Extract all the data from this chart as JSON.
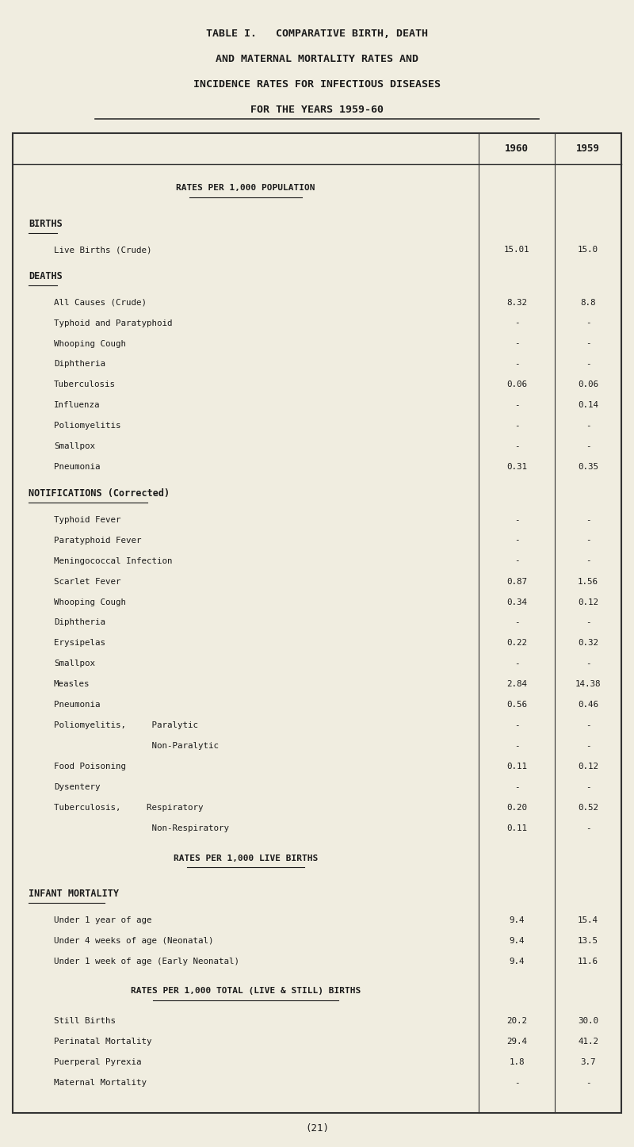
{
  "title_lines": [
    "TABLE I.   COMPARATIVE BIRTH, DEATH",
    "AND MATERNAL MORTALITY RATES AND",
    "INCIDENCE RATES FOR INFECTIOUS DISEASES",
    "FOR THE YEARS 1959-60"
  ],
  "col_headers": [
    "1960",
    "1959"
  ],
  "background_color": "#f0ede0",
  "text_color": "#1a1a1a",
  "sections": [
    {
      "type": "subheader",
      "text": "RATES PER 1,000 POPULATION",
      "underline": true,
      "indent": 1
    },
    {
      "type": "section_label",
      "text": "BIRTHS",
      "underline": true
    },
    {
      "type": "data_row",
      "label": "Live Births (Crude)",
      "indent": 2,
      "val1960": "15.01",
      "val1959": "15.0"
    },
    {
      "type": "section_label",
      "text": "DEATHS",
      "underline": true
    },
    {
      "type": "data_row",
      "label": "All Causes (Crude)",
      "indent": 2,
      "val1960": "8.32",
      "val1959": "8.8"
    },
    {
      "type": "data_row",
      "label": "Typhoid and Paratyphoid",
      "indent": 2,
      "val1960": "-",
      "val1959": "-"
    },
    {
      "type": "data_row",
      "label": "Whooping Cough",
      "indent": 2,
      "val1960": "-",
      "val1959": "-"
    },
    {
      "type": "data_row",
      "label": "Diphtheria",
      "indent": 2,
      "val1960": "-",
      "val1959": "-"
    },
    {
      "type": "data_row",
      "label": "Tuberculosis",
      "indent": 2,
      "val1960": "0.06",
      "val1959": "0.06"
    },
    {
      "type": "data_row",
      "label": "Influenza",
      "indent": 2,
      "val1960": "-",
      "val1959": "0.14"
    },
    {
      "type": "data_row",
      "label": "Poliomyelitis",
      "indent": 2,
      "val1960": "-",
      "val1959": "-"
    },
    {
      "type": "data_row",
      "label": "Smallpox",
      "indent": 2,
      "val1960": "-",
      "val1959": "-"
    },
    {
      "type": "data_row",
      "label": "Pneumonia",
      "indent": 2,
      "val1960": "0.31",
      "val1959": "0.35"
    },
    {
      "type": "section_label",
      "text": "NOTIFICATIONS (Corrected)",
      "underline": true
    },
    {
      "type": "data_row",
      "label": "Typhoid Fever",
      "indent": 2,
      "val1960": "-",
      "val1959": "-"
    },
    {
      "type": "data_row",
      "label": "Paratyphoid Fever",
      "indent": 2,
      "val1960": "-",
      "val1959": "-"
    },
    {
      "type": "data_row",
      "label": "Meningococcal Infection",
      "indent": 2,
      "val1960": "-",
      "val1959": "-"
    },
    {
      "type": "data_row",
      "label": "Scarlet Fever",
      "indent": 2,
      "val1960": "0.87",
      "val1959": "1.56"
    },
    {
      "type": "data_row",
      "label": "Whooping Cough",
      "indent": 2,
      "val1960": "0.34",
      "val1959": "0.12"
    },
    {
      "type": "data_row",
      "label": "Diphtheria",
      "indent": 2,
      "val1960": "-",
      "val1959": "-"
    },
    {
      "type": "data_row",
      "label": "Erysipelas",
      "indent": 2,
      "val1960": "0.22",
      "val1959": "0.32"
    },
    {
      "type": "data_row",
      "label": "Smallpox",
      "indent": 2,
      "val1960": "-",
      "val1959": "-"
    },
    {
      "type": "data_row",
      "label": "Measles",
      "indent": 2,
      "val1960": "2.84",
      "val1959": "14.38"
    },
    {
      "type": "data_row",
      "label": "Pneumonia",
      "indent": 2,
      "val1960": "0.56",
      "val1959": "0.46"
    },
    {
      "type": "data_row",
      "label": "Poliomyelitis,     Paralytic",
      "indent": 2,
      "val1960": "-",
      "val1959": "-"
    },
    {
      "type": "data_row",
      "label": "                   Non-Paralytic",
      "indent": 2,
      "val1960": "-",
      "val1959": "-"
    },
    {
      "type": "data_row",
      "label": "Food Poisoning",
      "indent": 2,
      "val1960": "0.11",
      "val1959": "0.12"
    },
    {
      "type": "data_row",
      "label": "Dysentery",
      "indent": 2,
      "val1960": "-",
      "val1959": "-"
    },
    {
      "type": "data_row",
      "label": "Tuberculosis,     Respiratory",
      "indent": 2,
      "val1960": "0.20",
      "val1959": "0.52"
    },
    {
      "type": "data_row",
      "label": "                   Non-Respiratory",
      "indent": 2,
      "val1960": "0.11",
      "val1959": "-"
    },
    {
      "type": "subheader",
      "text": "RATES PER 1,000 LIVE BIRTHS",
      "underline": true,
      "indent": 1
    },
    {
      "type": "section_label",
      "text": "INFANT MORTALITY",
      "underline": true
    },
    {
      "type": "data_row",
      "label": "Under 1 year of age",
      "indent": 2,
      "val1960": "9.4",
      "val1959": "15.4"
    },
    {
      "type": "data_row",
      "label": "Under 4 weeks of age (Neonatal)",
      "indent": 2,
      "val1960": "9.4",
      "val1959": "13.5"
    },
    {
      "type": "data_row",
      "label": "Under 1 week of age (Early Neonatal)",
      "indent": 2,
      "val1960": "9.4",
      "val1959": "11.6"
    },
    {
      "type": "subheader",
      "text": "RATES PER 1,000 TOTAL (LIVE & STILL) BIRTHS",
      "underline": true,
      "indent": 1
    },
    {
      "type": "data_row",
      "label": "Still Births",
      "indent": 2,
      "val1960": "20.2",
      "val1959": "30.0"
    },
    {
      "type": "data_row",
      "label": "Perinatal Mortality",
      "indent": 2,
      "val1960": "29.4",
      "val1959": "41.2"
    },
    {
      "type": "data_row",
      "label": "Puerperal Pyrexia",
      "indent": 2,
      "val1960": "1.8",
      "val1959": "3.7"
    },
    {
      "type": "data_row",
      "label": "Maternal Mortality",
      "indent": 2,
      "val1960": "-",
      "val1959": "-"
    }
  ],
  "footer": "(21)"
}
